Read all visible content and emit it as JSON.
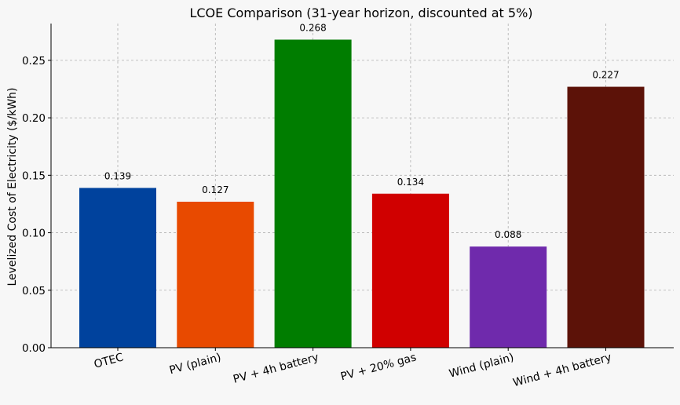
{
  "chart_data": {
    "type": "bar",
    "title": "LCOE Comparison (31-year horizon, discounted at 5%)",
    "xlabel": "",
    "ylabel": "Levelized Cost of Electricity ($/kWh)",
    "ylim": [
      0,
      0.282
    ],
    "yticks": [
      "0.00",
      "0.05",
      "0.10",
      "0.15",
      "0.20",
      "0.25"
    ],
    "categories": [
      "OTEC",
      "PV (plain)",
      "PV + 4h battery",
      "PV + 20% gas",
      "Wind (plain)",
      "Wind + 4h battery"
    ],
    "values": [
      0.139,
      0.127,
      0.268,
      0.134,
      0.088,
      0.227
    ],
    "data_labels": [
      "0.139",
      "0.127",
      "0.268",
      "0.134",
      "0.088",
      "0.227"
    ],
    "colors": [
      "#00429d",
      "#e84a00",
      "#007d00",
      "#d00000",
      "#6f2aac",
      "#5c1208"
    ],
    "grid": true,
    "legend": "none"
  }
}
